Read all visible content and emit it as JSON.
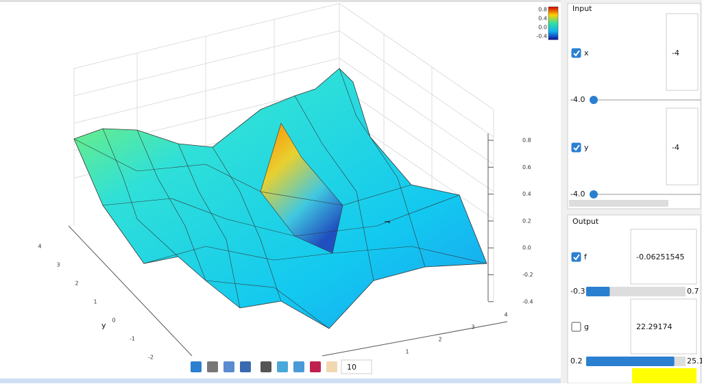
{
  "plot": {
    "colorbar_ticks": [
      "0.8",
      "0.4",
      "0.0",
      "-0.4"
    ],
    "z_ticks": [
      "0.8",
      "0.6",
      "0.4",
      "0.2",
      "0.0",
      "-0.2",
      "-0.4"
    ],
    "z_label": "f",
    "y_ticks": [
      "4",
      "3",
      "2",
      "1",
      "0",
      "-1",
      "-2"
    ],
    "y_label": "y",
    "x_ticks": [
      "1",
      "2",
      "3",
      "4"
    ],
    "toolbar_value": "10"
  },
  "input": {
    "title": "Input",
    "rows": [
      {
        "label": "x",
        "checked": true,
        "value": "-4",
        "slider": "-4.0"
      },
      {
        "label": "y",
        "checked": true,
        "value": "-4",
        "slider": "-4.0"
      }
    ]
  },
  "output": {
    "title": "Output",
    "rows": [
      {
        "label": "f",
        "checked": true,
        "value": "-0.06251545",
        "min": "-0.3",
        "max": "0.7"
      },
      {
        "label": "g",
        "checked": false,
        "value": "22.29174",
        "min": "0.2",
        "max": "25.1"
      }
    ]
  }
}
